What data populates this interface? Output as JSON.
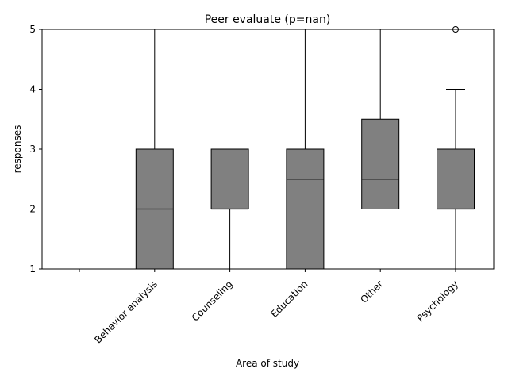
{
  "chart_data": {
    "type": "box",
    "title": "Peer evaluate (p=nan)",
    "xlabel": "Area of study",
    "ylabel": "responses",
    "ylim": [
      1,
      5
    ],
    "yticks": [
      "1",
      "2",
      "3",
      "4",
      "5"
    ],
    "categories": [
      "",
      "Behavior analysis",
      "Counseling",
      "Education",
      "Other",
      "Psychology"
    ],
    "box_color": "#808080",
    "boxes": [
      null,
      {
        "whislo": 1,
        "q1": 1,
        "median": 2,
        "q3": 3,
        "whishi": 5,
        "fliers": []
      },
      {
        "whislo": 1,
        "q1": 2,
        "median": 2,
        "q3": 3,
        "whishi": 3,
        "fliers": []
      },
      {
        "whislo": 1,
        "q1": 1,
        "median": 2.5,
        "q3": 3,
        "whishi": 5,
        "fliers": []
      },
      {
        "whislo": 2,
        "q1": 2,
        "median": 2.5,
        "q3": 3.5,
        "whishi": 5,
        "fliers": []
      },
      {
        "whislo": 1,
        "q1": 2,
        "median": 2,
        "q3": 3,
        "whishi": 4,
        "fliers": [
          5
        ]
      }
    ]
  }
}
